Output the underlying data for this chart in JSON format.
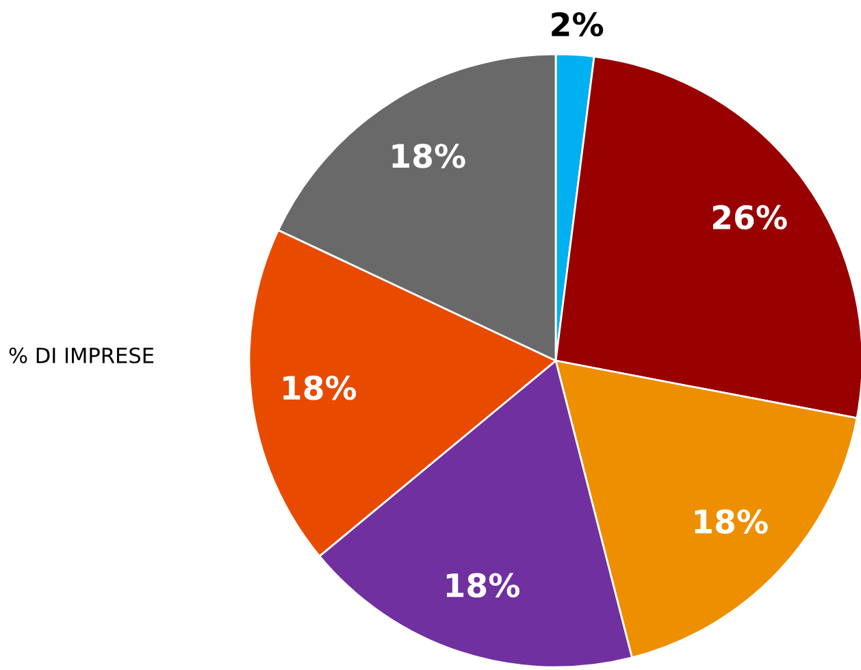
{
  "chart_data": {
    "type": "pie",
    "categories": [
      null,
      null,
      null,
      null,
      null,
      null
    ],
    "values": [
      2,
      26,
      18,
      18,
      18,
      18
    ],
    "colors": [
      "#00b0f0",
      "#990000",
      "#ed8f00",
      "#7030a0",
      "#e84a00",
      "#696969"
    ],
    "value_labels": [
      "2%",
      "26%",
      "18%",
      "18%",
      "18%",
      "18%"
    ],
    "annotations": [
      "% DI IMPRESE"
    ]
  }
}
